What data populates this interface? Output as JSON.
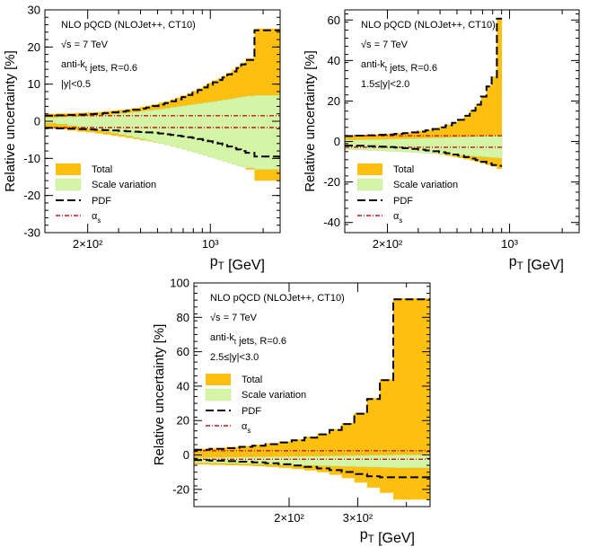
{
  "chart_data": [
    {
      "type": "area",
      "xscale": "log",
      "xlim": [
        114,
        2500
      ],
      "ylim": [
        -30,
        30
      ],
      "xticks": [
        200,
        1000
      ],
      "xtick_labels": [
        "2×10²",
        "10³"
      ],
      "yticks": [
        -30,
        -20,
        -10,
        0,
        10,
        20,
        30
      ],
      "ylabel": "Relative uncertainty [%]",
      "xlabel": "p_T [GeV]",
      "annotations": [
        "NLO pQCD (NLOJet++, CT10)",
        "√s = 7 TeV",
        "anti-k_t jets, R=0.6",
        "|y|<0.5"
      ],
      "legend": [
        "Total",
        "Scale variation",
        "PDF",
        "α_s"
      ],
      "legend_position": "bottom-left",
      "colors": {
        "total": "#FDC010",
        "scale": "#D4F5A6",
        "pdf": "#000000",
        "alphas": "#C8141E"
      },
      "bin_edges": [
        114,
        133,
        153,
        174,
        196,
        220,
        245,
        272,
        300,
        330,
        362,
        395,
        430,
        468,
        507,
        548,
        592,
        638,
        686,
        737,
        790,
        846,
        905,
        967,
        1032,
        1101,
        1172,
        1248,
        1327,
        1410,
        1497,
        1588,
        1784,
        2116,
        2500
      ],
      "total_up": [
        2.0,
        2.1,
        2.2,
        2.3,
        2.4,
        2.5,
        2.7,
        2.9,
        3.1,
        3.3,
        3.6,
        3.9,
        4.2,
        4.6,
        5.0,
        5.4,
        5.9,
        6.4,
        7.0,
        7.6,
        8.2,
        8.9,
        9.6,
        10.3,
        11.0,
        11.6,
        12.3,
        13.1,
        13.9,
        14.8,
        15.8,
        17.0,
        25.0,
        25.0
      ],
      "total_down": [
        -2.0,
        -2.2,
        -2.5,
        -2.8,
        -3.0,
        -3.3,
        -3.6,
        -3.9,
        -4.2,
        -4.5,
        -4.8,
        -5.1,
        -5.4,
        -5.7,
        -6.0,
        -6.3,
        -6.6,
        -6.9,
        -7.2,
        -7.5,
        -7.8,
        -8.1,
        -8.4,
        -8.7,
        -9.0,
        -9.4,
        -9.8,
        -10.2,
        -10.7,
        -11.2,
        -11.8,
        -13.0,
        -16.0,
        -16.0
      ],
      "scale_up": [
        1.0,
        1.1,
        1.2,
        1.3,
        1.5,
        1.6,
        1.8,
        1.9,
        2.1,
        2.3,
        2.5,
        2.7,
        2.9,
        3.1,
        3.3,
        3.5,
        3.8,
        4.0,
        4.2,
        4.4,
        4.6,
        4.8,
        5.0,
        5.2,
        5.4,
        5.6,
        5.8,
        6.0,
        6.2,
        6.4,
        6.6,
        6.8,
        7.0,
        7.0
      ],
      "scale_down": [
        -0.5,
        -0.8,
        -1.2,
        -1.6,
        -2.0,
        -2.4,
        -2.8,
        -3.2,
        -3.6,
        -4.0,
        -4.4,
        -4.8,
        -5.2,
        -5.6,
        -6.0,
        -6.4,
        -6.8,
        -7.2,
        -7.6,
        -8.0,
        -8.4,
        -8.8,
        -9.2,
        -9.6,
        -10.0,
        -10.4,
        -10.8,
        -11.2,
        -11.6,
        -12.0,
        -12.3,
        -12.6,
        -13.0,
        -13.0
      ],
      "pdf_up": [
        1.5,
        1.6,
        1.7,
        1.8,
        1.9,
        2.0,
        2.2,
        2.4,
        2.6,
        2.8,
        3.1,
        3.4,
        3.7,
        4.1,
        4.5,
        4.9,
        5.4,
        5.9,
        6.5,
        7.1,
        7.7,
        8.4,
        9.1,
        9.8,
        10.5,
        11.1,
        11.8,
        12.6,
        13.4,
        14.3,
        15.3,
        16.5,
        24.5,
        24.5
      ],
      "pdf_down": [
        -1.8,
        -1.9,
        -2.0,
        -2.1,
        -2.2,
        -2.3,
        -2.4,
        -2.5,
        -2.6,
        -2.7,
        -2.8,
        -2.9,
        -3.0,
        -3.1,
        -3.3,
        -3.5,
        -3.7,
        -3.9,
        -4.1,
        -4.3,
        -4.5,
        -4.8,
        -5.1,
        -5.4,
        -5.7,
        -6.0,
        -6.4,
        -6.8,
        -7.2,
        -7.6,
        -8.0,
        -8.5,
        -9.5,
        -9.5
      ],
      "alphas_up": [
        1.5,
        1.5,
        1.5,
        1.5,
        1.5,
        1.5,
        1.5,
        1.5,
        1.5,
        1.5,
        1.5,
        1.5,
        1.5,
        1.5,
        1.5,
        1.5,
        1.5,
        1.5,
        1.5,
        1.5,
        1.5,
        1.5,
        1.5,
        1.5,
        1.5,
        1.5,
        1.5,
        1.5,
        1.5,
        1.5,
        1.5,
        1.5,
        1.5,
        1.5
      ],
      "alphas_down": [
        -1.7,
        -1.7,
        -1.7,
        -1.7,
        -1.7,
        -1.7,
        -1.7,
        -1.7,
        -1.7,
        -1.7,
        -1.7,
        -1.7,
        -1.7,
        -1.7,
        -1.7,
        -1.7,
        -1.7,
        -1.7,
        -1.7,
        -1.7,
        -1.7,
        -1.7,
        -1.7,
        -1.7,
        -1.7,
        -1.7,
        -1.7,
        -1.7,
        -1.7,
        -1.7,
        -1.7,
        -1.7,
        -1.7,
        -1.7
      ]
    },
    {
      "type": "area",
      "xscale": "log",
      "xlim": [
        114,
        2500
      ],
      "ylim": [
        -45,
        65
      ],
      "xticks": [
        200,
        1000
      ],
      "xtick_labels": [
        "2×10²",
        "10³"
      ],
      "yticks": [
        -40,
        -20,
        0,
        20,
        40,
        60
      ],
      "ylabel": "Relative uncertainty [%]",
      "xlabel": "p_T [GeV]",
      "annotations": [
        "NLO pQCD (NLOJet++, CT10)",
        "√s = 7 TeV",
        "anti-k_t jets, R=0.6",
        "1.5≤|y|<2.0"
      ],
      "legend": [
        "Total",
        "Scale variation",
        "PDF",
        "α_s"
      ],
      "legend_position": "bottom-left",
      "colors": {
        "total": "#FDC010",
        "scale": "#D4F5A6",
        "pdf": "#000000",
        "alphas": "#C8141E"
      },
      "bin_edges": [
        114,
        133,
        153,
        174,
        196,
        220,
        245,
        272,
        300,
        330,
        362,
        395,
        430,
        468,
        507,
        548,
        592,
        638,
        686,
        737,
        790,
        846,
        905,
        2500
      ],
      "total_up": [
        3.0,
        3.2,
        3.4,
        3.6,
        3.8,
        4.1,
        4.4,
        4.8,
        5.2,
        5.8,
        6.5,
        7.3,
        8.3,
        9.5,
        11.0,
        13.0,
        15.5,
        18.5,
        22.5,
        27.5,
        32.0,
        61.0
      ],
      "total_down": [
        -2.5,
        -2.8,
        -3.1,
        -3.4,
        -3.7,
        -4.0,
        -4.4,
        -4.8,
        -5.2,
        -5.6,
        -6.1,
        -6.6,
        -7.1,
        -7.6,
        -8.2,
        -8.8,
        -9.4,
        -10.1,
        -10.8,
        -11.6,
        -12.4,
        -13.5
      ],
      "scale_up": [
        0.8,
        0.9,
        1.0,
        1.1,
        1.2,
        1.3,
        1.4,
        1.5,
        1.6,
        1.7,
        1.8,
        1.9,
        2.0,
        2.1,
        2.2,
        2.3,
        2.4,
        2.5,
        2.6,
        2.7,
        2.8,
        2.9
      ],
      "scale_down": [
        -4.0,
        -4.2,
        -4.4,
        -4.6,
        -4.8,
        -5.0,
        -5.2,
        -5.4,
        -5.6,
        -5.8,
        -6.0,
        -6.2,
        -6.4,
        -6.6,
        -6.8,
        -7.0,
        -7.2,
        -7.4,
        -7.6,
        -7.8,
        -8.0,
        -8.2
      ],
      "pdf_up": [
        2.7,
        2.9,
        3.1,
        3.3,
        3.5,
        3.8,
        4.1,
        4.5,
        4.9,
        5.5,
        6.2,
        7.0,
        8.0,
        9.2,
        10.7,
        12.7,
        15.2,
        18.2,
        22.2,
        27.2,
        31.7,
        60.7
      ],
      "pdf_down": [
        -2.0,
        -2.1,
        -2.3,
        -2.5,
        -2.7,
        -3.0,
        -3.3,
        -3.6,
        -4.0,
        -4.4,
        -4.8,
        -5.3,
        -5.8,
        -6.4,
        -7.0,
        -7.7,
        -8.4,
        -9.2,
        -10.0,
        -10.8,
        -11.6,
        -12.0
      ],
      "alphas_up": [
        2.8,
        2.8,
        2.8,
        2.8,
        2.8,
        2.8,
        2.8,
        2.8,
        2.8,
        2.8,
        2.8,
        2.8,
        2.8,
        2.8,
        2.8,
        2.8,
        2.8,
        2.8,
        2.8,
        2.8,
        2.8,
        2.8
      ],
      "alphas_down": [
        -2.8,
        -2.8,
        -2.8,
        -2.8,
        -2.8,
        -2.8,
        -2.8,
        -2.8,
        -2.8,
        -2.8,
        -2.8,
        -2.8,
        -2.8,
        -2.8,
        -2.8,
        -2.8,
        -2.8,
        -2.8,
        -2.8,
        -2.8,
        -2.8,
        -2.8
      ]
    },
    {
      "type": "area",
      "xscale": "log",
      "xlim": [
        114,
        460
      ],
      "ylim": [
        -30,
        100
      ],
      "xticks": [
        200,
        300
      ],
      "xtick_labels": [
        "2×10²",
        "3×10²"
      ],
      "yticks": [
        -20,
        0,
        20,
        40,
        60,
        80,
        100
      ],
      "ylabel": "Relative uncertainty [%]",
      "xlabel": "p_T [GeV]",
      "annotations": [
        "NLO pQCD (NLOJet++, CT10)",
        "√s = 7 TeV",
        "anti-k_t jets, R=0.6",
        "2.5≤|y|<3.0"
      ],
      "legend": [
        "Total",
        "Scale variation",
        "PDF",
        "α_s"
      ],
      "legend_position": "middle-left",
      "colors": {
        "total": "#FDC010",
        "scale": "#D4F5A6",
        "pdf": "#000000",
        "alphas": "#C8141E"
      },
      "bin_edges": [
        114,
        125,
        137,
        149,
        161,
        174,
        188,
        203,
        219,
        236,
        254,
        273,
        294,
        317,
        342,
        370,
        460
      ],
      "total_up": [
        3.5,
        4.0,
        4.5,
        5.2,
        5.9,
        6.8,
        7.8,
        9.0,
        10.6,
        12.5,
        15.0,
        18.5,
        24.5,
        33.0,
        44.0,
        91.0
      ],
      "total_down": [
        -5.5,
        -5.8,
        -6.0,
        -6.2,
        -6.5,
        -7.0,
        -7.5,
        -8.2,
        -9.0,
        -10.0,
        -11.5,
        -13.5,
        -16.0,
        -19.0,
        -22.0,
        -26.0
      ],
      "scale_up": [
        -1.5,
        -1.4,
        -1.3,
        -1.2,
        -1.1,
        -1.0,
        -0.9,
        -0.8,
        -0.7,
        -0.6,
        -0.5,
        -0.4,
        -0.3,
        -0.2,
        -0.1,
        0.0
      ],
      "scale_down": [
        -4.5,
        -4.7,
        -4.9,
        -5.1,
        -5.3,
        -5.5,
        -5.7,
        -5.9,
        -6.1,
        -6.3,
        -6.5,
        -6.7,
        -6.9,
        -7.1,
        -7.3,
        -7.5
      ],
      "pdf_up": [
        3.0,
        3.5,
        4.0,
        4.7,
        5.4,
        6.3,
        7.3,
        8.5,
        10.1,
        12.0,
        14.5,
        18.0,
        24.0,
        32.5,
        43.5,
        90.5
      ],
      "pdf_down": [
        -3.0,
        -3.3,
        -3.6,
        -3.9,
        -4.3,
        -4.8,
        -5.4,
        -6.1,
        -6.9,
        -7.8,
        -8.8,
        -9.9,
        -11.1,
        -12.4,
        -13.0,
        -13.0
      ],
      "alphas_up": [
        2.5,
        2.5,
        2.5,
        2.5,
        2.5,
        2.5,
        2.5,
        2.5,
        2.5,
        2.5,
        2.5,
        2.5,
        2.5,
        2.5,
        2.5,
        2.5
      ],
      "alphas_down": [
        -2.5,
        -2.5,
        -2.5,
        -2.5,
        -2.5,
        -2.5,
        -2.5,
        -2.5,
        -2.5,
        -2.5,
        -2.5,
        -2.5,
        -2.5,
        -2.5,
        -2.5,
        -2.5
      ]
    }
  ]
}
